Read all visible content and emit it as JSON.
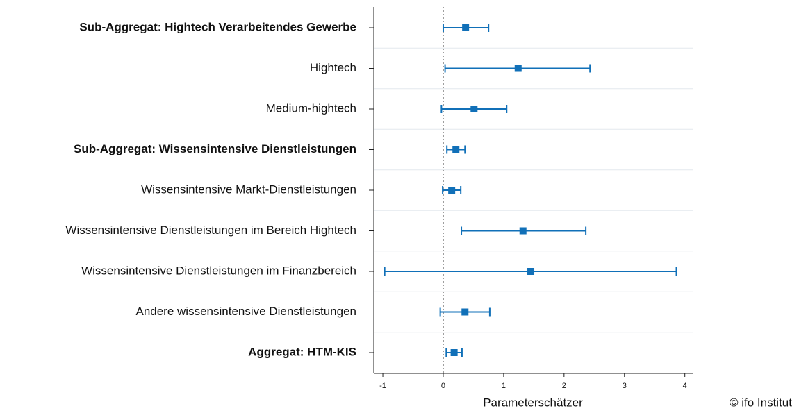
{
  "chart_data": {
    "type": "coefplot",
    "categories": [
      "Sub-Aggregat: Hightech Verarbeitendes Gewerbe",
      "Hightech",
      "Medium-hightech",
      "Sub-Aggregat: Wissensintensive Dienstleistungen",
      "Wissensintensive Markt-Dienstleistungen",
      "Wissensintensive Dienstleistungen im Bereich Hightech",
      "Wissensintensive Dienstleistungen im Finanzbereich",
      "Andere wissensintensive Dienstleistungen",
      "Aggregat: HTM-KIS"
    ],
    "bold_categories": [
      true,
      false,
      false,
      true,
      false,
      false,
      false,
      false,
      true
    ],
    "values": [
      0.37,
      1.24,
      0.51,
      0.21,
      0.14,
      1.32,
      1.45,
      0.36,
      0.18
    ],
    "lower": [
      0.0,
      0.03,
      -0.03,
      0.06,
      -0.01,
      0.3,
      -0.97,
      -0.05,
      0.05
    ],
    "upper": [
      0.75,
      2.43,
      1.05,
      0.36,
      0.29,
      2.36,
      3.86,
      0.77,
      0.31
    ],
    "color": "#1170b8",
    "refline": 0,
    "xlim": [
      -1.15,
      4.13
    ],
    "xticks": [
      -1,
      0,
      1,
      2,
      3,
      4
    ],
    "xlabel": "Parameterschätzer",
    "source": "© ifo Institut"
  }
}
